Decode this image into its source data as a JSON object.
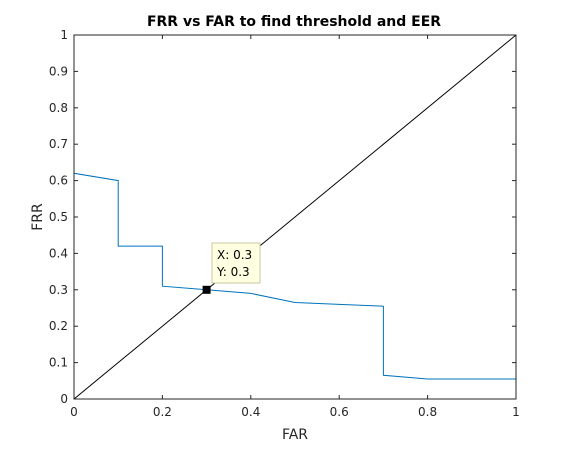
{
  "chart_data": {
    "type": "line",
    "title": "FRR vs FAR to find threshold and EER",
    "xlabel": "FAR",
    "ylabel": "FRR",
    "xlim": [
      0,
      1
    ],
    "ylim": [
      0,
      1
    ],
    "x_ticks": [
      "0",
      "0.2",
      "0.4",
      "0.6",
      "0.8",
      "1"
    ],
    "y_ticks": [
      "0",
      "0.1",
      "0.2",
      "0.3",
      "0.4",
      "0.5",
      "0.6",
      "0.7",
      "0.8",
      "0.9",
      "1"
    ],
    "box": true,
    "grid": false,
    "series": [
      {
        "color": "#0072BD",
        "x": [
          0,
          0,
          0,
          0.1,
          0.1,
          0.2,
          0.2,
          0.3,
          0.4,
          0.5,
          0.6,
          0.7,
          0.7,
          0.8,
          0.9,
          1.0,
          1.0
        ],
        "y": [
          1,
          0.85,
          0.62,
          0.6,
          0.42,
          0.42,
          0.31,
          0.3,
          0.29,
          0.265,
          0.26,
          0.255,
          0.065,
          0.055,
          0.055,
          0.055,
          0.0
        ]
      },
      {
        "color": "#000000",
        "x": [
          0,
          1
        ],
        "y": [
          0,
          1
        ]
      }
    ],
    "marker": {
      "x": 0.3,
      "y": 0.3
    },
    "datatip": {
      "x_text": "X: 0.3",
      "y_text": "Y: 0.3",
      "background": "#FFFFE1",
      "border": "#C9C9A0"
    }
  }
}
